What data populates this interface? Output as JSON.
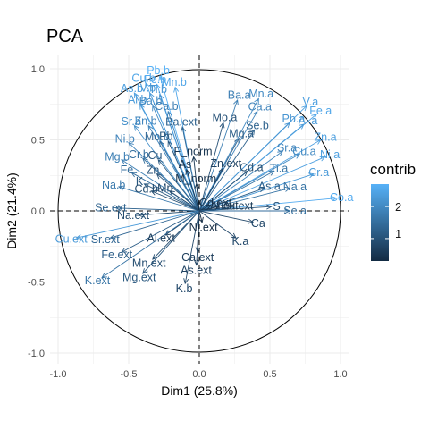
{
  "title": "PCA",
  "legend": {
    "title": "contrib",
    "ticks": [
      2,
      1
    ]
  },
  "colors": {
    "low": "#132B43",
    "high": "#56B1F7",
    "axis": "#333333",
    "grid": "#ebebeb",
    "circle": "#000000"
  },
  "chart_data": {
    "type": "scatter",
    "xlabel": "Dim1 (25.8%)",
    "ylabel": "Dim2 (21.4%)",
    "xlim": [
      -1.0,
      1.0
    ],
    "ylim": [
      -1.0,
      1.0
    ],
    "xticks": [
      "-1.0",
      "-0.5",
      "0.0",
      "0.5",
      "1.0"
    ],
    "yticks": [
      "-1.0",
      "-0.5",
      "0.0",
      "0.5",
      "1.0"
    ],
    "grid": true,
    "legend_position": "right",
    "color_scale": {
      "variable": "contrib",
      "range": [
        0.3,
        2.7
      ]
    },
    "variables": [
      {
        "name": "Pb.b",
        "x": -0.28,
        "y": 0.95,
        "contrib": 2.7
      },
      {
        "name": "Cu.b",
        "x": -0.38,
        "y": 0.9,
        "contrib": 2.5
      },
      {
        "name": "Fe.b",
        "x": -0.3,
        "y": 0.89,
        "contrib": 2.6
      },
      {
        "name": "Mn.b",
        "x": -0.17,
        "y": 0.87,
        "contrib": 2.5
      },
      {
        "name": "As.b",
        "x": -0.46,
        "y": 0.83,
        "contrib": 2.4
      },
      {
        "name": "V.b",
        "x": -0.35,
        "y": 0.83,
        "contrib": 2.3
      },
      {
        "name": "Ti.b",
        "x": -0.28,
        "y": 0.82,
        "contrib": 2.2
      },
      {
        "name": "Al.b",
        "x": -0.42,
        "y": 0.75,
        "contrib": 2.3
      },
      {
        "name": "Ba.b",
        "x": -0.33,
        "y": 0.74,
        "contrib": 2.0
      },
      {
        "name": "Ca.b",
        "x": -0.22,
        "y": 0.7,
        "contrib": 1.8
      },
      {
        "name": "Ba.ext",
        "x": -0.12,
        "y": 0.59,
        "contrib": 1.3
      },
      {
        "name": "Sr.b",
        "x": -0.46,
        "y": 0.6,
        "contrib": 2.1
      },
      {
        "name": "Zn.b",
        "x": -0.36,
        "y": 0.6,
        "contrib": 1.9
      },
      {
        "name": "Ni.b",
        "x": -0.5,
        "y": 0.48,
        "contrib": 1.9
      },
      {
        "name": "Mo.b",
        "x": -0.28,
        "y": 0.49,
        "contrib": 1.4
      },
      {
        "name": "Pb",
        "x": -0.22,
        "y": 0.49,
        "contrib": 1.1
      },
      {
        "name": "Mg.b",
        "x": -0.55,
        "y": 0.36,
        "contrib": 1.8
      },
      {
        "name": "Cr.b",
        "x": -0.4,
        "y": 0.37,
        "contrib": 1.5
      },
      {
        "name": "Cu",
        "x": -0.29,
        "y": 0.36,
        "contrib": 1.1
      },
      {
        "name": "Fe",
        "x": -0.48,
        "y": 0.27,
        "contrib": 1.5
      },
      {
        "name": "Zn",
        "x": -0.3,
        "y": 0.26,
        "contrib": 1.0
      },
      {
        "name": "K",
        "x": -0.39,
        "y": 0.19,
        "contrib": 1.1
      },
      {
        "name": "Mn",
        "x": -0.21,
        "y": 0.14,
        "contrib": 0.8
      },
      {
        "name": "Na.b",
        "x": -0.57,
        "y": 0.17,
        "contrib": 1.7
      },
      {
        "name": "Cd.b",
        "x": -0.34,
        "y": 0.14,
        "contrib": 0.9
      },
      {
        "name": "F_norm",
        "x": -0.04,
        "y": 0.38,
        "contrib": 0.5
      },
      {
        "name": "As",
        "x": -0.09,
        "y": 0.29,
        "contrib": 0.4
      },
      {
        "name": "Mo.a",
        "x": 0.17,
        "y": 0.62,
        "contrib": 1.0
      },
      {
        "name": "Mg.a",
        "x": 0.28,
        "y": 0.51,
        "contrib": 1.2
      },
      {
        "name": "Se.b",
        "x": 0.39,
        "y": 0.57,
        "contrib": 1.3
      },
      {
        "name": "Ba.a",
        "x": 0.27,
        "y": 0.78,
        "contrib": 1.8
      },
      {
        "name": "Mn.a",
        "x": 0.42,
        "y": 0.79,
        "contrib": 2.0
      },
      {
        "name": "Ca.a",
        "x": 0.41,
        "y": 0.7,
        "contrib": 1.9
      },
      {
        "name": "V.a",
        "x": 0.76,
        "y": 0.74,
        "contrib": 2.4
      },
      {
        "name": "Fe.a",
        "x": 0.83,
        "y": 0.68,
        "contrib": 2.5
      },
      {
        "name": "Pb.a",
        "x": 0.64,
        "y": 0.62,
        "contrib": 2.2
      },
      {
        "name": "Al.a",
        "x": 0.74,
        "y": 0.61,
        "contrib": 2.3
      },
      {
        "name": "Zn.a",
        "x": 0.86,
        "y": 0.5,
        "contrib": 2.4
      },
      {
        "name": "Sr.a",
        "x": 0.59,
        "y": 0.42,
        "contrib": 1.9
      },
      {
        "name": "Cu.a",
        "x": 0.71,
        "y": 0.4,
        "contrib": 2.0
      },
      {
        "name": "Ni.a",
        "x": 0.89,
        "y": 0.38,
        "contrib": 2.4
      },
      {
        "name": "Zn.ext",
        "x": 0.17,
        "y": 0.3,
        "contrib": 0.7
      },
      {
        "name": "Cd.a",
        "x": 0.34,
        "y": 0.28,
        "contrib": 0.9
      },
      {
        "name": "Ti.a",
        "x": 0.53,
        "y": 0.28,
        "contrib": 1.6
      },
      {
        "name": "Cr.a",
        "x": 0.81,
        "y": 0.26,
        "contrib": 2.3
      },
      {
        "name": "M_norm",
        "x": -0.02,
        "y": 0.19,
        "contrib": 0.4
      },
      {
        "name": "As.a",
        "x": 0.46,
        "y": 0.16,
        "contrib": 1.2
      },
      {
        "name": "Na.a",
        "x": 0.64,
        "y": 0.16,
        "contrib": 1.6
      },
      {
        "name": "Co.a",
        "x": 0.97,
        "y": 0.09,
        "contrib": 2.6
      },
      {
        "name": "Cd.ext",
        "x": 0.08,
        "y": 0.04,
        "contrib": 0.4
      },
      {
        "name": "Al.ext",
        "x": 0.14,
        "y": 0.03,
        "contrib": 0.5
      },
      {
        "name": "Cu.ext",
        "x": 0.23,
        "y": 0.03,
        "contrib": 0.6
      },
      {
        "name": "S",
        "x": 0.51,
        "y": 0.03,
        "contrib": 1.0
      },
      {
        "name": "Se.a",
        "x": 0.64,
        "y": 0.0,
        "contrib": 1.5
      },
      {
        "name": "Ca",
        "x": 0.38,
        "y": -0.08,
        "contrib": 0.8
      },
      {
        "name": "K.a",
        "x": 0.26,
        "y": -0.19,
        "contrib": 0.8
      },
      {
        "name": "Ni.ext",
        "x": 0.02,
        "y": -0.08,
        "contrib": 0.3
      },
      {
        "name": "Se.ext",
        "x": -0.59,
        "y": 0.02,
        "contrib": 1.3
      },
      {
        "name": "Na.ext",
        "x": -0.43,
        "y": -0.03,
        "contrib": 0.9
      },
      {
        "name": "Cu.ext",
        "x": -0.87,
        "y": -0.19,
        "contrib": 2.3
      },
      {
        "name": "Sr.ext",
        "x": -0.63,
        "y": -0.19,
        "contrib": 1.4
      },
      {
        "name": "Al.ext",
        "x": -0.24,
        "y": -0.17,
        "contrib": 0.6
      },
      {
        "name": "Fe.ext",
        "x": -0.55,
        "y": -0.29,
        "contrib": 1.2
      },
      {
        "name": "Mn.ext",
        "x": -0.33,
        "y": -0.34,
        "contrib": 0.9
      },
      {
        "name": "Ca.ext",
        "x": -0.01,
        "y": -0.29,
        "contrib": 0.6
      },
      {
        "name": "As.ext",
        "x": -0.02,
        "y": -0.38,
        "contrib": 0.7
      },
      {
        "name": "Mg.ext",
        "x": -0.4,
        "y": -0.44,
        "contrib": 1.1
      },
      {
        "name": "K.ext",
        "x": -0.69,
        "y": -0.47,
        "contrib": 1.6
      },
      {
        "name": "K.b",
        "x": -0.1,
        "y": -0.51,
        "contrib": 0.8
      }
    ]
  }
}
